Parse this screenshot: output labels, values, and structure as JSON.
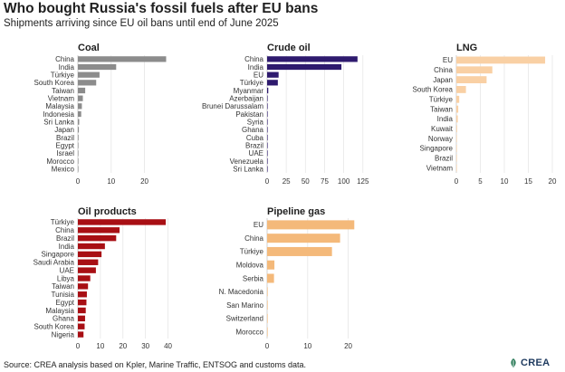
{
  "title": "Who bought Russia's fossil fuels after EU bans",
  "subtitle": "Shipments arriving since EU oil bans until end of June 2025",
  "source": "Source: CREA analysis based on Kpler, Marine Traffic, ENTSOG and customs data.",
  "logo_text": "CREA",
  "chart_data": [
    {
      "type": "bar",
      "title": "Coal",
      "color": "#8c8c8c",
      "categories": [
        "China",
        "India",
        "Türkiye",
        "South Korea",
        "Taiwan",
        "Vietnam",
        "Malaysia",
        "Indonesia",
        "Sri Lanka",
        "Japan",
        "Brazil",
        "Egypt",
        "Israel",
        "Morocco",
        "Mexico"
      ],
      "values": [
        26.5,
        11.5,
        6.5,
        5.5,
        2.2,
        1.5,
        1.2,
        1.0,
        0.4,
        0.3,
        0.2,
        0.15,
        0.1,
        0.08,
        0.05
      ],
      "xlim": [
        0,
        28
      ],
      "xticks": [
        "0",
        "10",
        "20"
      ],
      "xtick_values": [
        0,
        10,
        20
      ]
    },
    {
      "type": "bar",
      "title": "Crude oil",
      "color": "#2e1a6e",
      "categories": [
        "China",
        "India",
        "EU",
        "Türkiye",
        "Myanmar",
        "Azerbaijan",
        "Brunei Darussalam",
        "Pakistan",
        "Syria",
        "Ghana",
        "Cuba",
        "Brazil",
        "UAE",
        "Venezuela",
        "Sri Lanka"
      ],
      "values": [
        118,
        97,
        15,
        14,
        1.5,
        0.5,
        0.4,
        0.3,
        0.3,
        0.2,
        0.2,
        0.15,
        0.1,
        0.1,
        0.05
      ],
      "xlim": [
        0,
        130
      ],
      "xticks": [
        "0",
        "25",
        "50",
        "75",
        "100",
        "125"
      ],
      "xtick_values": [
        0,
        25,
        50,
        75,
        100,
        125
      ]
    },
    {
      "type": "bar",
      "title": "LNG",
      "color": "#f9d0a4",
      "categories": [
        "EU",
        "China",
        "Japan",
        "South Korea",
        "Türkiye",
        "Taiwan",
        "India",
        "Kuwait",
        "Norway",
        "Singapore",
        "Brazil",
        "Vietnam"
      ],
      "values": [
        18.5,
        7.5,
        6.3,
        2.0,
        0.6,
        0.4,
        0.3,
        0.15,
        0.1,
        0.08,
        0.05,
        0.03
      ],
      "xlim": [
        0,
        20
      ],
      "xticks": [
        "0",
        "5",
        "10",
        "15",
        "20"
      ],
      "xtick_values": [
        0,
        5,
        10,
        15,
        20
      ]
    },
    {
      "type": "bar",
      "title": "Oil products",
      "color": "#a80f14",
      "categories": [
        "Türkiye",
        "China",
        "Brazil",
        "India",
        "Singapore",
        "Saudi Arabia",
        "UAE",
        "Libya",
        "Taiwan",
        "Tunisia",
        "Egypt",
        "Malaysia",
        "Ghana",
        "South Korea",
        "Nigeria"
      ],
      "values": [
        39,
        18.5,
        17,
        12,
        10.5,
        9,
        8,
        5.5,
        4.5,
        4,
        3.8,
        3.5,
        3.2,
        3,
        2.5
      ],
      "xlim": [
        0,
        43
      ],
      "xticks": [
        "0",
        "10",
        "20",
        "30",
        "40"
      ],
      "xtick_values": [
        0,
        10,
        20,
        30,
        40
      ]
    },
    {
      "type": "bar",
      "title": "Pipeline gas",
      "color": "#f4b97a",
      "categories": [
        "EU",
        "China",
        "Türkiye",
        "Moldova",
        "Serbia",
        "N. Macedonia",
        "San Marino",
        "Switzerland",
        "Morocco"
      ],
      "values": [
        21.5,
        18,
        16,
        1.8,
        1.7,
        0.1,
        0.05,
        0.05,
        0.03
      ],
      "xlim": [
        0,
        23
      ],
      "xticks": [
        "0",
        "10",
        "20"
      ],
      "xtick_values": [
        0,
        10,
        20
      ]
    }
  ]
}
